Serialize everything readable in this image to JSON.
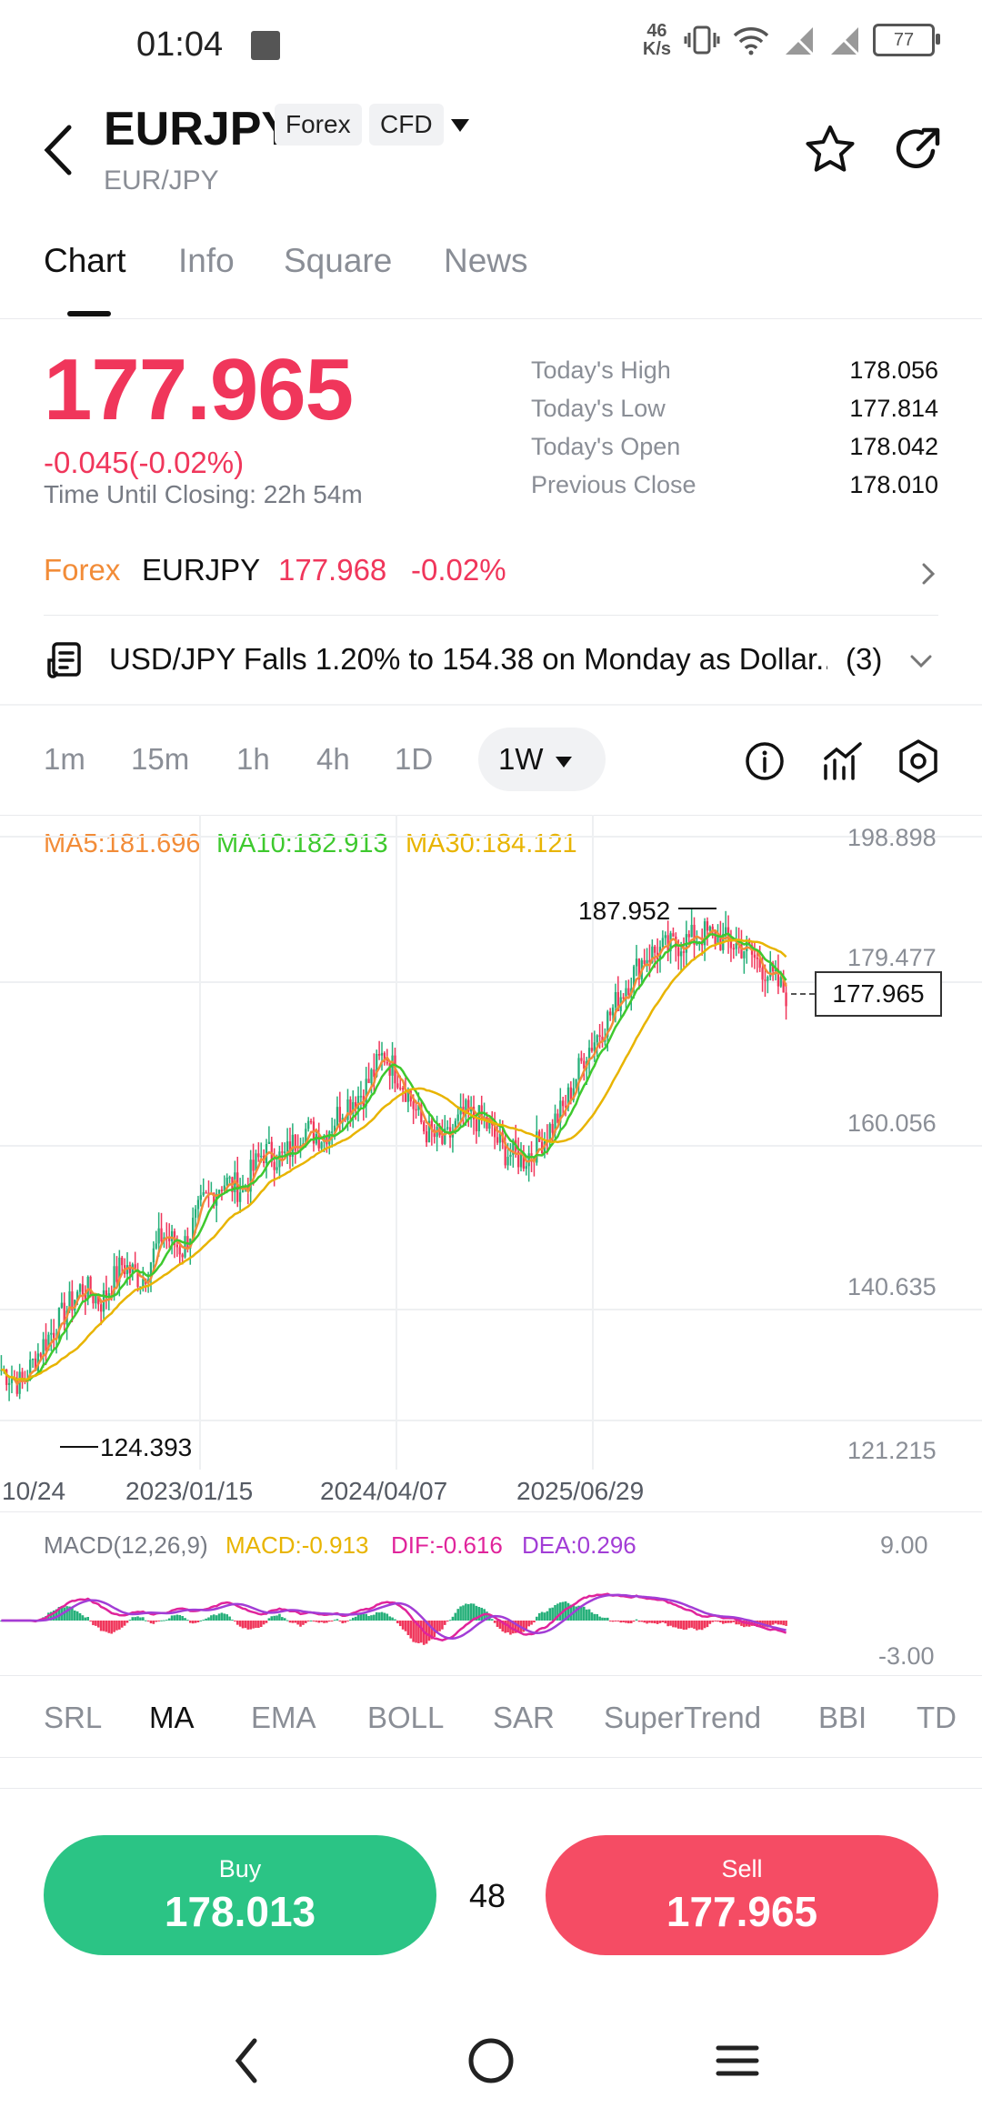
{
  "status": {
    "time": "01:04",
    "speed_value": "46",
    "speed_unit": "K/s",
    "battery": "77"
  },
  "header": {
    "title": "EURJPY",
    "tags": [
      "Forex",
      "CFD"
    ],
    "subtitle": "EUR/JPY"
  },
  "tabs": [
    {
      "label": "Chart"
    },
    {
      "label": "Info"
    },
    {
      "label": "Square"
    },
    {
      "label": "News"
    }
  ],
  "quote": {
    "price": "177.965",
    "change": "-0.045(-0.02%)",
    "closing_label": "Time Until Closing:",
    "closing_value": "22h 54m",
    "stats": [
      {
        "label": "Today's High",
        "value": "178.056"
      },
      {
        "label": "Today's Low",
        "value": "177.814"
      },
      {
        "label": "Today's Open",
        "value": "178.042"
      },
      {
        "label": "Previous Close",
        "value": "178.010"
      }
    ]
  },
  "forex_row": {
    "label": "Forex",
    "symbol": "EURJPY",
    "price": "177.968",
    "change": "-0.02%"
  },
  "news_row": {
    "text": "USD/JPY Falls 1.20% to 154.38 on Monday as Dollar...",
    "count": "(3)"
  },
  "timeframes": {
    "items": [
      "1m",
      "15m",
      "1h",
      "4h",
      "1D"
    ],
    "active": "1W"
  },
  "chart_data": [
    {
      "type": "candlestick",
      "ma_legend": {
        "ma5": "MA5:181.696",
        "ma10": "MA10:182.913",
        "ma30": "MA30:184.121"
      },
      "y_ticks": [
        "198.898",
        "179.477",
        "160.056",
        "140.635",
        "121.215"
      ],
      "x_ticks": [
        "10/24",
        "2023/01/15",
        "2024/04/07",
        "2025/06/29"
      ],
      "ylim": [
        121.215,
        198.898
      ],
      "high_label": "187.952",
      "low_label": "124.393",
      "last_price_label": "177.965",
      "ma_series": [
        {
          "name": "MA5",
          "color": "#f28c38"
        },
        {
          "name": "MA10",
          "color": "#3ec92e"
        },
        {
          "name": "MA30",
          "color": "#e8b400"
        }
      ],
      "trend": [
        128,
        126,
        131,
        135,
        139,
        137,
        142,
        140,
        146,
        144,
        150,
        153,
        152,
        157,
        156,
        160,
        159,
        163,
        165,
        170,
        166,
        160,
        158,
        162,
        161,
        157,
        156,
        159,
        163,
        170,
        174,
        179,
        183,
        184,
        185,
        186,
        185,
        184,
        181,
        178
      ],
      "colors": {
        "up": "#26b07a",
        "down": "#f0365b"
      }
    },
    {
      "type": "macd",
      "legend": {
        "name": "MACD(12,26,9)",
        "macd": "MACD:-0.913",
        "dif": "DIF:-0.616",
        "dea": "DEA:0.296"
      },
      "y_ticks": [
        "9.00",
        "-3.00"
      ],
      "colors": {
        "macd": "#e8b400",
        "dif": "#e0249b",
        "dea": "#a23dd6"
      }
    }
  ],
  "indicators": {
    "items": [
      "SRL",
      "MA",
      "EMA",
      "BOLL",
      "SAR",
      "SuperTrend",
      "BBI",
      "TD"
    ],
    "active": "MA"
  },
  "trade": {
    "buy_label": "Buy",
    "buy_price": "178.013",
    "spread": "48",
    "sell_label": "Sell",
    "sell_price": "177.965"
  }
}
